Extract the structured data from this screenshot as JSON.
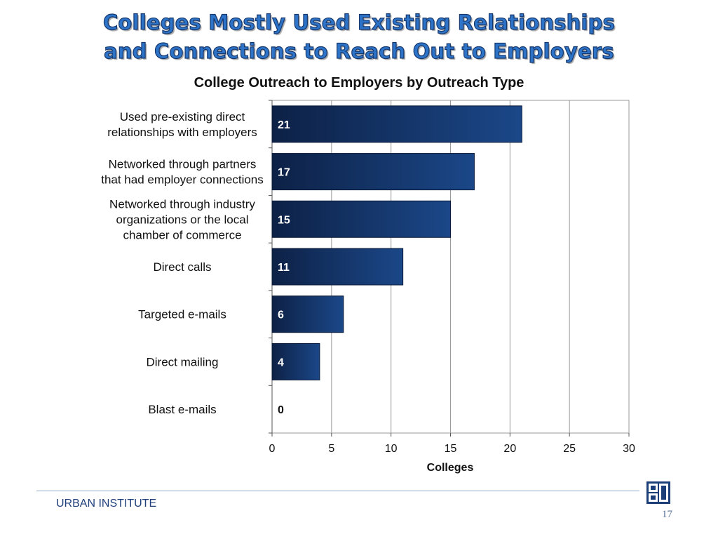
{
  "slide": {
    "title_lines": [
      "Colleges Mostly Used Existing Relationships",
      "and Connections to Reach Out to Employers"
    ],
    "footer_org": "URBAN INSTITUTE",
    "page_number": "17",
    "logo_icon": "urban-institute-logo-icon"
  },
  "colors": {
    "title_fill": "#2d73c8",
    "bar_dark": "#0d2146",
    "bar_light": "#1b4788",
    "grid": "#9a9a9a",
    "footer_text": "#1f3f7a"
  },
  "chart_data": {
    "type": "bar",
    "orientation": "horizontal",
    "title": "College Outreach to Employers by Outreach Type",
    "xlabel": "Colleges",
    "ylabel": "",
    "xlim": [
      0,
      30
    ],
    "x_ticks": [
      0,
      5,
      10,
      15,
      20,
      25,
      30
    ],
    "grid": "vertical",
    "data_labels": true,
    "categories": [
      [
        "Used pre-existing direct",
        "relationships with employers"
      ],
      [
        "Networked through partners",
        "that had employer connections"
      ],
      [
        "Networked through industry",
        "organizations or the local",
        "chamber of commerce"
      ],
      [
        "Direct calls"
      ],
      [
        "Targeted e-mails"
      ],
      [
        "Direct mailing"
      ],
      [
        "Blast e-mails"
      ]
    ],
    "values": [
      21,
      17,
      15,
      11,
      6,
      4,
      0
    ]
  }
}
